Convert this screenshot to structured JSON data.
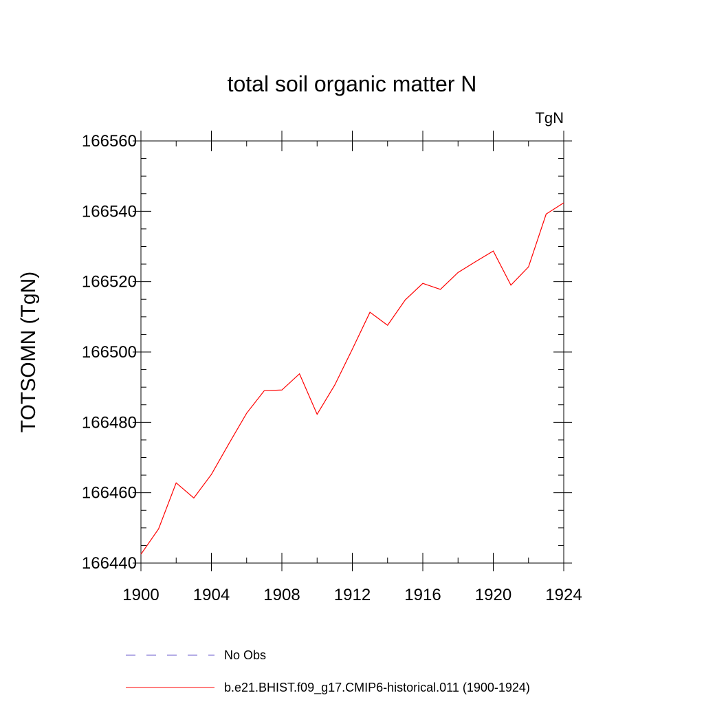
{
  "chart_data": {
    "type": "line",
    "title": "total soil organic matter N",
    "units_label": "TgN",
    "ylabel": "TOTSOMN  (TgN)",
    "xlabel": "",
    "xlim": [
      1900,
      1924
    ],
    "ylim": [
      166440,
      166560
    ],
    "x_ticks": [
      1900,
      1904,
      1908,
      1912,
      1916,
      1920,
      1924
    ],
    "y_ticks": [
      166440,
      166460,
      166480,
      166500,
      166520,
      166540,
      166560
    ],
    "grid": false,
    "legend_position": "bottom",
    "x": [
      1900,
      1901,
      1902,
      1903,
      1904,
      1905,
      1906,
      1907,
      1908,
      1909,
      1910,
      1911,
      1912,
      1913,
      1914,
      1915,
      1916,
      1917,
      1918,
      1919,
      1920,
      1921,
      1922,
      1923,
      1924
    ],
    "series": [
      {
        "name": "b.e21.BHIST.f09_g17.CMIP6-historical.011 (1900-1924)",
        "color": "#ff0000",
        "dash": "solid",
        "values": [
          166442.5,
          166449.7,
          166462.8,
          166458.5,
          166465.2,
          166474.0,
          166482.6,
          166489.0,
          166489.2,
          166493.8,
          166482.3,
          166490.6,
          166500.8,
          166511.3,
          166507.6,
          166514.8,
          166519.5,
          166517.8,
          166522.6,
          166525.7,
          166528.7,
          166519.0,
          166524.2,
          166539.2,
          166542.4
        ]
      }
    ],
    "legend": [
      {
        "label": "No Obs",
        "color": "#6a5acd",
        "dash": "dashed"
      },
      {
        "label": "b.e21.BHIST.f09_g17.CMIP6-historical.011 (1900-1924)",
        "color": "#ff0000",
        "dash": "solid"
      }
    ]
  }
}
